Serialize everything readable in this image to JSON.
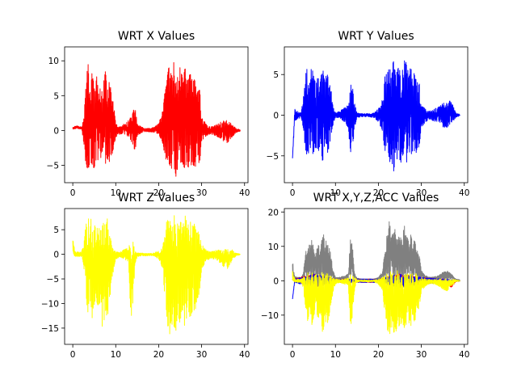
{
  "chart_data": [
    {
      "type": "line",
      "title": "WRT X Values",
      "xlabel": "",
      "ylabel": "",
      "xlim": [
        -1.9,
        40.8
      ],
      "ylim": [
        -7.5,
        12
      ],
      "xticks": [
        0,
        10,
        20,
        30,
        40
      ],
      "yticks": [
        -5,
        0,
        5,
        10
      ],
      "grid": false,
      "series": [
        {
          "color": "#ff0000",
          "amp": 6,
          "base": 0.3,
          "x": [
            0,
            1,
            2,
            2.5,
            3,
            3.5,
            4,
            4.5,
            5,
            5.5,
            6,
            6.5,
            7,
            7.5,
            8,
            8.5,
            9,
            9.5,
            10,
            11,
            12,
            13,
            14,
            14.5,
            15,
            16,
            17,
            18,
            19,
            20,
            21,
            21.5,
            22,
            22.5,
            23,
            23.5,
            24,
            24.5,
            25,
            25.5,
            26,
            26.5,
            27,
            27.5,
            28,
            28.5,
            29,
            29.5,
            30,
            31,
            32,
            33,
            34,
            35,
            36,
            37,
            38,
            39
          ],
          "values": [
            0.5,
            0.7,
            0.5,
            1.5,
            6,
            10,
            7,
            9,
            6,
            8,
            6,
            7,
            5,
            9.5,
            6,
            8,
            5,
            4,
            1,
            0.5,
            1,
            1.5,
            2.5,
            4,
            1,
            0.5,
            0.3,
            0.3,
            0.5,
            1,
            3,
            6,
            8.5,
            9.5,
            8,
            10,
            7,
            9,
            9,
            8,
            11,
            9,
            7,
            11,
            7,
            8,
            6,
            7,
            2,
            1,
            0.5,
            0.7,
            1,
            1.5,
            1.5,
            1,
            0.3,
            0.1
          ],
          "lows": [
            0.2,
            0.3,
            0.2,
            -1.5,
            -5,
            -5.5,
            -5,
            -5,
            -5.5,
            -4,
            -4.5,
            -4,
            -3.5,
            -5,
            -4,
            -4.5,
            -4,
            -2.5,
            -1,
            -0.5,
            -0.5,
            -1,
            -2,
            -3,
            -0.8,
            -0.3,
            -0.2,
            -0.2,
            -0.3,
            -0.5,
            -2,
            -4,
            -4.5,
            -5,
            -5.5,
            -5,
            -7,
            -5,
            -5,
            -4.5,
            -5.5,
            -5,
            -5.5,
            -5,
            -5,
            -5.5,
            -4,
            -5,
            -1.5,
            -0.8,
            -0.5,
            -0.7,
            -1,
            -1.5,
            -1.8,
            -1,
            -0.3,
            -0.1
          ]
        }
      ]
    },
    {
      "type": "line",
      "title": "WRT Y Values",
      "xlabel": "",
      "ylabel": "",
      "xlim": [
        -1.9,
        40.8
      ],
      "ylim": [
        -8.3,
        8.4
      ],
      "xticks": [
        0,
        10,
        20,
        30,
        40
      ],
      "yticks": [
        -5,
        0,
        5
      ],
      "grid": false,
      "series": [
        {
          "color": "#0000ff",
          "amp": 5,
          "base": 0,
          "x": [
            0,
            0.5,
            1,
            2,
            2.5,
            3,
            3.5,
            4,
            4.5,
            5,
            5.5,
            6,
            6.5,
            7,
            7.5,
            8,
            8.5,
            9,
            9.5,
            10,
            11,
            12,
            13,
            13.5,
            14,
            14.5,
            15,
            16,
            17,
            18,
            19,
            20,
            21,
            21.5,
            22,
            22.5,
            23,
            23.5,
            24,
            24.5,
            25,
            25.5,
            26,
            26.5,
            27,
            27.5,
            28,
            28.5,
            29,
            29.5,
            30,
            31,
            32,
            33,
            34,
            35,
            36,
            37,
            38,
            39
          ],
          "values": [
            -5.3,
            0.8,
            0.5,
            0.3,
            2,
            5,
            6,
            5.5,
            6,
            5,
            4.5,
            5.5,
            4,
            7.5,
            4.5,
            5.5,
            4.5,
            3,
            1,
            0.3,
            0.5,
            1,
            1.5,
            4,
            3.5,
            1.5,
            0.3,
            0.2,
            0.2,
            0.2,
            0.3,
            0.8,
            2,
            5,
            6,
            6.5,
            5.5,
            7.5,
            6,
            6.5,
            6,
            5.5,
            7,
            6.5,
            5.5,
            7,
            5,
            5.5,
            4.5,
            4,
            1.5,
            0.8,
            0.5,
            0.8,
            1,
            1.5,
            1.5,
            2,
            0.3,
            0.1
          ],
          "lows": [
            -5.3,
            -0.8,
            -0.5,
            -0.3,
            -1.5,
            -4.5,
            -5,
            -4.5,
            -5,
            -4.5,
            -4,
            -4.5,
            -3.5,
            -6,
            -4,
            -5,
            -4,
            -2.5,
            -1,
            -0.3,
            -0.3,
            -0.8,
            -1.5,
            -5,
            -4,
            -1.5,
            -0.3,
            -0.2,
            -0.2,
            -0.2,
            -0.3,
            -0.8,
            -2,
            -4.5,
            -5.5,
            -6.5,
            -5.5,
            -7,
            -6,
            -5.5,
            -5.5,
            -6.5,
            -5,
            -6,
            -5.5,
            -5,
            -4.5,
            -5.5,
            -4,
            -4,
            -1.5,
            -0.8,
            -0.5,
            -0.8,
            -0.8,
            -1.5,
            -1.5,
            -1,
            -0.3,
            -0.1
          ]
        }
      ]
    },
    {
      "type": "line",
      "title": "WRT Z Values",
      "xlabel": "",
      "ylabel": "",
      "xlim": [
        -1.9,
        40.8
      ],
      "ylim": [
        -18.3,
        9.3
      ],
      "xticks": [
        0,
        10,
        20,
        30,
        40
      ],
      "yticks": [
        -15,
        -10,
        -5,
        0,
        5
      ],
      "grid": false,
      "series": [
        {
          "color": "#ffff00",
          "amp": 7,
          "base": 0,
          "x": [
            0,
            0.5,
            1,
            2,
            2.5,
            3,
            3.5,
            4,
            4.5,
            5,
            5.5,
            6,
            6.5,
            7,
            7.5,
            8,
            8.5,
            9,
            9.5,
            10,
            11,
            12,
            13,
            13.5,
            14,
            14.5,
            15,
            16,
            17,
            18,
            19,
            20,
            21,
            21.5,
            22,
            22.5,
            23,
            23.5,
            24,
            24.5,
            25,
            25.5,
            26,
            26.5,
            27,
            27.5,
            28,
            28.5,
            29,
            29.5,
            30,
            31,
            32,
            33,
            34,
            35,
            36,
            37,
            38,
            39
          ],
          "values": [
            3.5,
            0.5,
            0.5,
            0.5,
            2,
            6,
            8.5,
            7,
            8,
            6,
            5.5,
            6,
            5.5,
            7,
            6,
            7.5,
            5.5,
            4,
            1.5,
            0.5,
            0.5,
            1,
            1.5,
            4,
            3,
            1,
            0.3,
            0.3,
            0.2,
            0.2,
            0.3,
            0.8,
            2,
            6,
            7.5,
            8,
            7,
            8.5,
            7,
            8,
            7,
            6.5,
            8,
            7.5,
            6,
            7.5,
            6,
            6.5,
            5,
            4,
            2,
            1,
            0.5,
            0.8,
            1,
            1,
            1,
            1,
            0.3,
            0.1
          ],
          "lows": [
            0,
            -0.5,
            -0.5,
            -0.5,
            -2,
            -8,
            -12,
            -9,
            -13,
            -10,
            -9,
            -12,
            -9,
            -17,
            -11,
            -13,
            -11,
            -7,
            -3,
            -1,
            -0.5,
            -1,
            -1.5,
            -13.5,
            -10,
            -2,
            -0.5,
            -0.3,
            -0.3,
            -0.3,
            -0.3,
            -1,
            -3,
            -10,
            -14,
            -16.5,
            -14,
            -15,
            -16,
            -13,
            -14,
            -12,
            -14.5,
            -13,
            -12,
            -13.5,
            -11,
            -12,
            -9,
            -8,
            -3,
            -1.5,
            -0.8,
            -1,
            -1.5,
            -2.5,
            -3,
            -1.5,
            -0.3,
            -0.1
          ]
        }
      ]
    },
    {
      "type": "line",
      "title": "WRT X,Y,Z,ACC Values",
      "xlabel": "",
      "ylabel": "",
      "xlim": [
        -1.9,
        40.8
      ],
      "ylim": [
        -18.5,
        21
      ],
      "xticks": [
        0,
        10,
        20,
        30,
        40
      ],
      "yticks": [
        -10,
        0,
        10,
        20
      ],
      "grid": false,
      "series": [
        {
          "color": "#808080",
          "amp": 5,
          "base": 1,
          "x": [
            0,
            0.5,
            1,
            2,
            2.5,
            3,
            3.5,
            4,
            4.5,
            5,
            5.5,
            6,
            6.5,
            7,
            7.5,
            8,
            8.5,
            9,
            9.5,
            10,
            11,
            12,
            13,
            13.5,
            14,
            14.5,
            15,
            16,
            17,
            18,
            19,
            20,
            21,
            21.5,
            22,
            22.5,
            23,
            23.5,
            24,
            24.5,
            25,
            25.5,
            26,
            26.5,
            27,
            27.5,
            28,
            28.5,
            29,
            29.5,
            30,
            31,
            32,
            33,
            34,
            35,
            36,
            37,
            38,
            39
          ],
          "values": [
            6,
            1.5,
            1,
            1,
            2,
            8,
            12,
            10,
            13,
            10,
            9,
            12,
            9,
            17,
            11,
            13,
            11,
            7,
            3,
            1,
            1,
            1.5,
            2,
            13.5,
            10,
            2,
            0.8,
            0.5,
            0.5,
            0.5,
            0.5,
            1,
            3,
            10,
            14,
            19,
            14,
            15,
            16,
            13,
            14,
            12,
            18,
            13,
            12,
            13.5,
            11,
            12,
            9,
            8,
            3,
            1.5,
            1,
            1.2,
            1.5,
            2.5,
            3,
            2,
            0.5,
            0.3
          ],
          "lows": [
            0,
            0.5,
            0.5,
            0.5,
            0.5,
            0.5,
            0.5,
            0.5,
            0.5,
            0.5,
            0.5,
            0.5,
            0.5,
            0.5,
            0.5,
            0.5,
            0.5,
            0.5,
            0.5,
            0.5,
            0.5,
            0.5,
            0.5,
            0.5,
            0.5,
            0.5,
            0.5,
            0.5,
            0.5,
            0.5,
            0.5,
            0.5,
            0.5,
            0.5,
            0.5,
            0.5,
            0.5,
            0.5,
            0.5,
            0.5,
            0.5,
            0.5,
            0.5,
            0.5,
            0.5,
            0.5,
            0.5,
            0.5,
            0.5,
            0.5,
            0.5,
            0.5,
            0.5,
            0.5,
            0.5,
            0.5,
            0.5,
            0.5,
            0.3,
            0.2
          ]
        },
        {
          "color": "#ff0000",
          "amp": 3,
          "base": 0,
          "x": [
            0,
            5,
            10,
            15,
            20,
            25,
            30,
            35,
            37,
            38,
            39
          ],
          "values": [
            0.5,
            2,
            0.5,
            0.5,
            0.5,
            2,
            1,
            0.5,
            0.3,
            0.2,
            0.1
          ],
          "lows": [
            0.2,
            -2,
            -0.5,
            -0.5,
            -0.5,
            -2,
            -1,
            -0.5,
            -2,
            -0.3,
            -0.1
          ]
        },
        {
          "color": "#0000ff",
          "amp": 3,
          "base": 0,
          "x": [
            0,
            0.5,
            5,
            10,
            15,
            20,
            25,
            30,
            35,
            39
          ],
          "values": [
            -5.3,
            0.5,
            2,
            0.5,
            0.5,
            0.5,
            2,
            1,
            0.5,
            0.1
          ],
          "lows": [
            -5.3,
            -0.5,
            -2,
            -0.5,
            -0.5,
            -0.5,
            -2,
            -1,
            -0.5,
            -0.1
          ]
        },
        {
          "color": "#ffff00",
          "amp": 7,
          "base": 0,
          "x": [
            0,
            0.5,
            1,
            2,
            2.5,
            3,
            3.5,
            4,
            4.5,
            5,
            5.5,
            6,
            6.5,
            7,
            7.5,
            8,
            8.5,
            9,
            9.5,
            10,
            11,
            12,
            13,
            13.5,
            14,
            14.5,
            15,
            16,
            17,
            18,
            19,
            20,
            21,
            21.5,
            22,
            22.5,
            23,
            23.5,
            24,
            24.5,
            25,
            25.5,
            26,
            26.5,
            27,
            27.5,
            28,
            28.5,
            29,
            29.5,
            30,
            31,
            32,
            33,
            34,
            35,
            36,
            37,
            38,
            39
          ],
          "values": [
            3.5,
            0.5,
            0.5,
            0.5,
            1,
            2,
            2.5,
            2,
            2.5,
            2,
            2,
            2,
            2,
            2.5,
            2,
            2.5,
            2,
            1.5,
            1,
            0.5,
            0.5,
            0.5,
            1,
            2,
            1.5,
            1,
            0.3,
            0.3,
            0.2,
            0.2,
            0.3,
            0.5,
            1,
            2,
            2.5,
            3,
            2.5,
            3,
            2.5,
            3,
            2.5,
            2.5,
            3,
            2.5,
            2,
            2.5,
            2,
            2.5,
            2,
            1.5,
            1,
            0.5,
            0.5,
            0.5,
            0.5,
            0.5,
            0.5,
            0.5,
            0.3,
            0.1
          ],
          "lows": [
            0,
            -0.5,
            -0.5,
            -0.5,
            -2,
            -8,
            -12,
            -9,
            -13,
            -10,
            -9,
            -12,
            -9,
            -17,
            -11,
            -13,
            -11,
            -7,
            -3,
            -1,
            -0.5,
            -1,
            -1.5,
            -13.5,
            -10,
            -2,
            -0.5,
            -0.3,
            -0.3,
            -0.3,
            -0.3,
            -1,
            -3,
            -10,
            -14,
            -16.5,
            -14,
            -15,
            -16,
            -13,
            -14,
            -12,
            -14.5,
            -13,
            -12,
            -13.5,
            -11,
            -12,
            -9,
            -8,
            -3,
            -1.5,
            -0.8,
            -1,
            -1.5,
            -2.5,
            -3,
            -1.5,
            -0.3,
            -0.1
          ]
        }
      ]
    }
  ]
}
